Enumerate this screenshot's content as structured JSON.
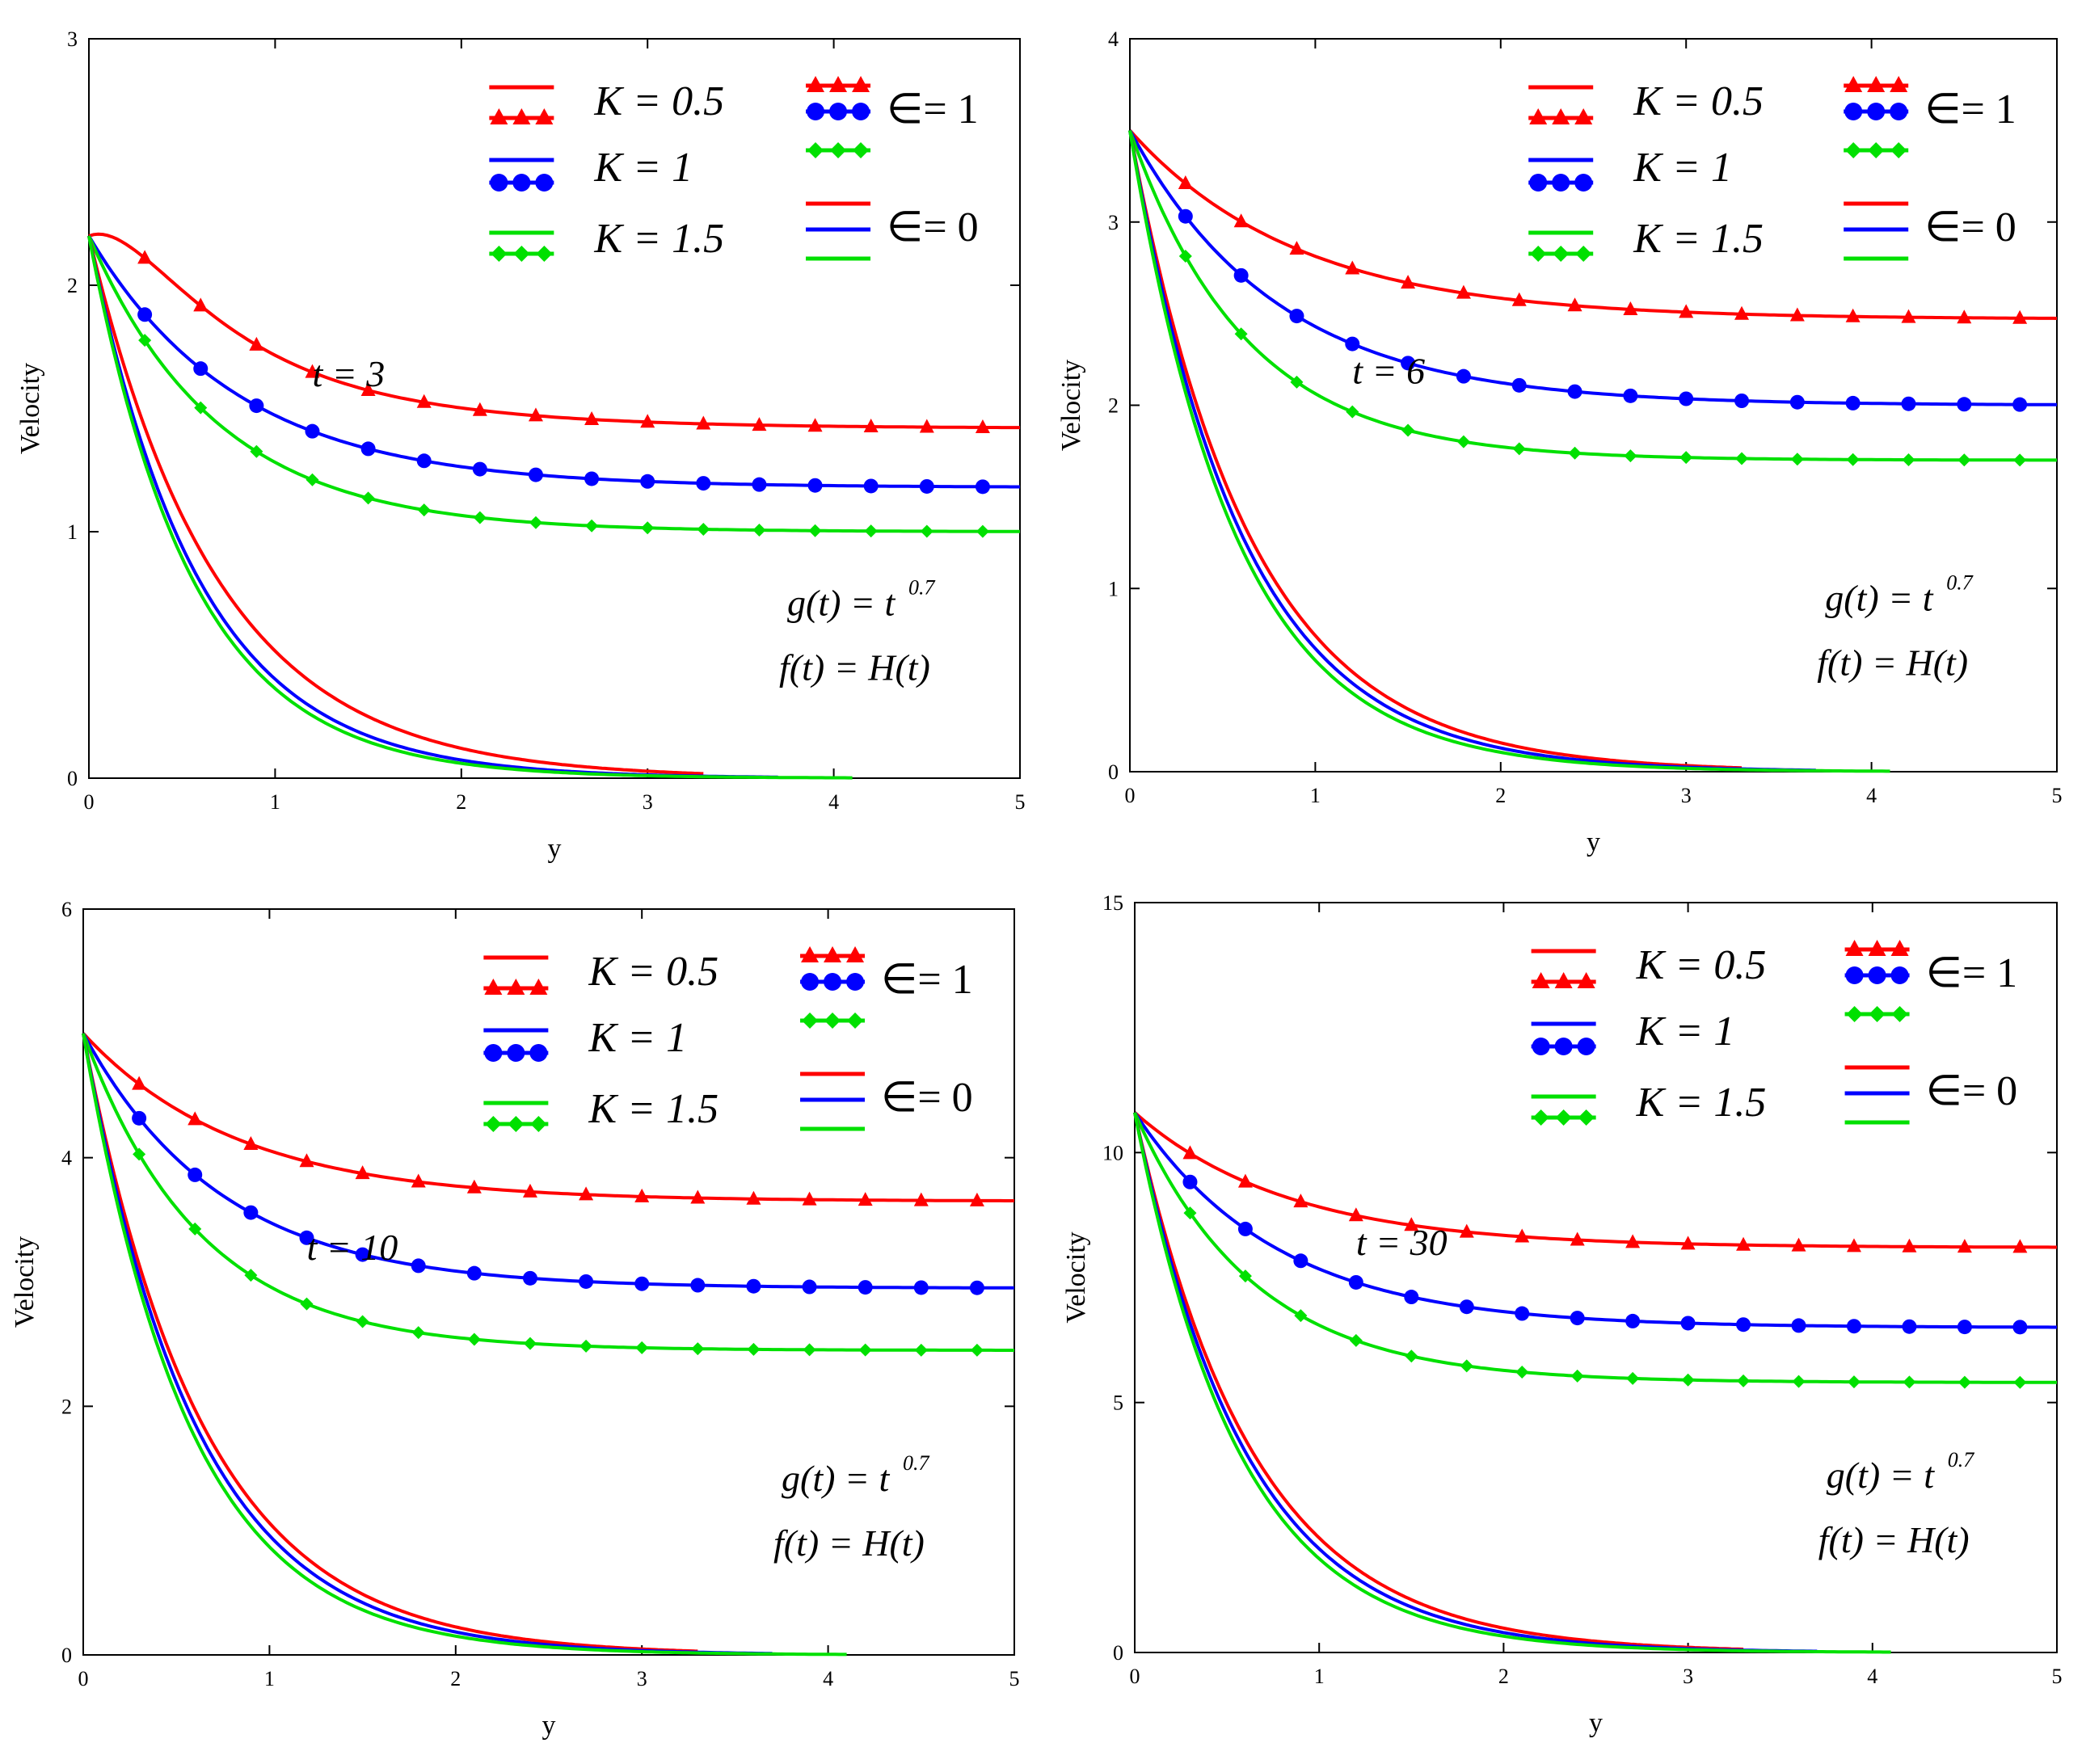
{
  "chart_data": [
    {
      "type": "line",
      "panel": "top-left",
      "xlabel": "y",
      "ylabel": "Velocity",
      "xlim": [
        0,
        5
      ],
      "ylim": [
        0,
        3
      ],
      "xticks": [
        "0",
        "1",
        "2",
        "3",
        "4",
        "5"
      ],
      "yticks": [
        "0",
        "1",
        "2",
        "3"
      ],
      "annotation_t": "t = 3",
      "annotation_g": "g(t) = t",
      "annotation_g_exp": "0.7",
      "annotation_f": "f(t) = H(t)",
      "legend": {
        "k05": "K = 0.5",
        "k1": "K = 1",
        "k15": "K = 1.5",
        "eps1": "∈= 1",
        "eps0": "∈= 0"
      },
      "series": [
        {
          "name": "K = 0.5, ∈ = 1",
          "color": "#ff0000",
          "marker": "triangle",
          "asym": 1.42,
          "start": 2.2,
          "rate": 1.15,
          "hump": 0.4
        },
        {
          "name": "K = 1, ∈ = 1",
          "color": "#0000ff",
          "marker": "circle",
          "asym": 1.18,
          "start": 2.2,
          "rate": 1.25,
          "hump": 0
        },
        {
          "name": "K = 1.5, ∈ = 1",
          "color": "#00e000",
          "marker": "diamond",
          "asym": 1.0,
          "start": 2.2,
          "rate": 1.45,
          "hump": 0
        },
        {
          "name": "K = 0.5, ∈ = 0",
          "color": "#ff0000",
          "marker": "none",
          "asym": 0,
          "start": 2.2,
          "rate": 1.45,
          "hump": 0
        },
        {
          "name": "K = 1, ∈ = 0",
          "color": "#0000ff",
          "marker": "none",
          "asym": 0,
          "start": 2.2,
          "rate": 1.7,
          "hump": 0
        },
        {
          "name": "K = 1.5, ∈ = 0",
          "color": "#00e000",
          "marker": "none",
          "asym": 0,
          "start": 2.2,
          "rate": 1.8,
          "hump": 0
        }
      ]
    },
    {
      "type": "line",
      "panel": "top-right",
      "xlabel": "y",
      "ylabel": "Velocity",
      "xlim": [
        0,
        5
      ],
      "ylim": [
        0,
        4
      ],
      "xticks": [
        "0",
        "1",
        "2",
        "3",
        "4",
        "5"
      ],
      "yticks": [
        "0",
        "1",
        "2",
        "3",
        "4"
      ],
      "annotation_t": "t = 6",
      "annotation_g": "g(t) = t",
      "annotation_g_exp": "0.7",
      "annotation_f": "f(t) = H(t)",
      "legend": {
        "k05": "K = 0.5",
        "k1": "K = 1",
        "k15": "K = 1.5",
        "eps1": "∈= 1",
        "eps0": "∈= 0"
      },
      "series": [
        {
          "name": "K = 0.5, ∈ = 1",
          "color": "#ff0000",
          "marker": "triangle",
          "asym": 2.47,
          "start": 3.5,
          "rate": 1.1,
          "hump": 0
        },
        {
          "name": "K = 1, ∈ = 1",
          "color": "#0000ff",
          "marker": "circle",
          "asym": 2.0,
          "start": 3.5,
          "rate": 1.25,
          "hump": 0
        },
        {
          "name": "K = 1.5, ∈ = 1",
          "color": "#00e000",
          "marker": "diamond",
          "asym": 1.7,
          "start": 3.5,
          "rate": 1.6,
          "hump": 0
        },
        {
          "name": "K = 0.5, ∈ = 0",
          "color": "#ff0000",
          "marker": "none",
          "asym": 0,
          "start": 3.5,
          "rate": 1.55,
          "hump": 0
        },
        {
          "name": "K = 1, ∈ = 0",
          "color": "#0000ff",
          "marker": "none",
          "asym": 0,
          "start": 3.5,
          "rate": 1.65,
          "hump": 0
        },
        {
          "name": "K = 1.5, ∈ = 0",
          "color": "#00e000",
          "marker": "none",
          "asym": 0,
          "start": 3.5,
          "rate": 1.75,
          "hump": 0
        }
      ]
    },
    {
      "type": "line",
      "panel": "bottom-left",
      "xlabel": "y",
      "ylabel": "Velocity",
      "xlim": [
        0,
        5
      ],
      "ylim": [
        0,
        6
      ],
      "xticks": [
        "0",
        "1",
        "2",
        "3",
        "4",
        "5"
      ],
      "yticks": [
        "0",
        "2",
        "4",
        "6"
      ],
      "annotation_t": "t = 10",
      "annotation_g": "g(t) = t",
      "annotation_g_exp": "0.7",
      "annotation_f": "f(t) = H(t)",
      "legend": {
        "k05": "K = 0.5",
        "k1": "K = 1",
        "k15": "K = 1.5",
        "eps1": "∈= 1",
        "eps0": "∈= 0"
      },
      "series": [
        {
          "name": "K = 0.5, ∈ = 1",
          "color": "#ff0000",
          "marker": "triangle",
          "asym": 3.65,
          "start": 5.0,
          "rate": 1.2,
          "hump": 0
        },
        {
          "name": "K = 1, ∈ = 1",
          "color": "#0000ff",
          "marker": "circle",
          "asym": 2.95,
          "start": 5.0,
          "rate": 1.35,
          "hump": 0
        },
        {
          "name": "K = 1.5, ∈ = 1",
          "color": "#00e000",
          "marker": "diamond",
          "asym": 2.45,
          "start": 5.0,
          "rate": 1.6,
          "hump": 0
        },
        {
          "name": "K = 0.5, ∈ = 0",
          "color": "#ff0000",
          "marker": "none",
          "asym": 0,
          "start": 5.0,
          "rate": 1.55,
          "hump": 0
        },
        {
          "name": "K = 1, ∈ = 0",
          "color": "#0000ff",
          "marker": "none",
          "asym": 0,
          "start": 5.0,
          "rate": 1.65,
          "hump": 0
        },
        {
          "name": "K = 1.5, ∈ = 0",
          "color": "#00e000",
          "marker": "none",
          "asym": 0,
          "start": 5.0,
          "rate": 1.75,
          "hump": 0
        }
      ]
    },
    {
      "type": "line",
      "panel": "bottom-right",
      "xlabel": "y",
      "ylabel": "Velocity",
      "xlim": [
        0,
        5
      ],
      "ylim": [
        0,
        15
      ],
      "xticks": [
        "0",
        "1",
        "2",
        "3",
        "4",
        "5"
      ],
      "yticks": [
        "0",
        "5",
        "10",
        "15"
      ],
      "annotation_t": "t = 30",
      "annotation_g": "g(t) = t",
      "annotation_g_exp": "0.7",
      "annotation_f": "f(t) = H(t)",
      "legend": {
        "k05": "K = 0.5",
        "k1": "K = 1",
        "k15": "K = 1.5",
        "eps1": "∈= 1",
        "eps0": "∈= 0"
      },
      "series": [
        {
          "name": "K = 0.5, ∈ = 1",
          "color": "#ff0000",
          "marker": "triangle",
          "asym": 8.1,
          "start": 10.8,
          "rate": 1.2,
          "hump": 0
        },
        {
          "name": "K = 1, ∈ = 1",
          "color": "#0000ff",
          "marker": "circle",
          "asym": 6.5,
          "start": 10.8,
          "rate": 1.3,
          "hump": 0
        },
        {
          "name": "K = 1.5, ∈ = 1",
          "color": "#00e000",
          "marker": "diamond",
          "asym": 5.4,
          "start": 10.8,
          "rate": 1.55,
          "hump": 0
        },
        {
          "name": "K = 0.5, ∈ = 0",
          "color": "#ff0000",
          "marker": "none",
          "asym": 0,
          "start": 10.8,
          "rate": 1.55,
          "hump": 0
        },
        {
          "name": "K = 1, ∈ = 0",
          "color": "#0000ff",
          "marker": "none",
          "asym": 0,
          "start": 10.8,
          "rate": 1.65,
          "hump": 0
        },
        {
          "name": "K = 1.5, ∈ = 0",
          "color": "#00e000",
          "marker": "none",
          "asym": 0,
          "start": 10.8,
          "rate": 1.75,
          "hump": 0
        }
      ]
    }
  ]
}
